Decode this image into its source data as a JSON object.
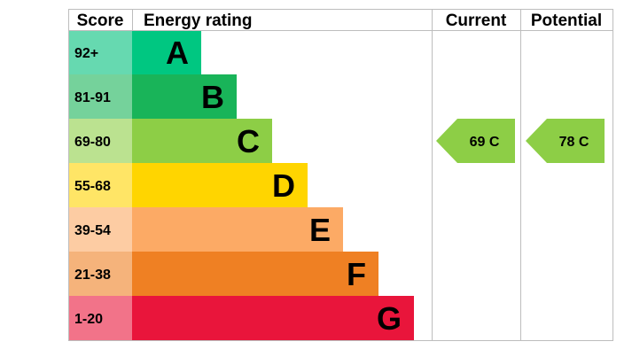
{
  "headers": {
    "score": "Score",
    "energy_rating": "Energy rating",
    "current": "Current",
    "potential": "Potential"
  },
  "chart_data": {
    "type": "bar",
    "title": "",
    "categories": [
      "A",
      "B",
      "C",
      "D",
      "E",
      "F",
      "G"
    ],
    "score_ranges": [
      "92+",
      "81-91",
      "69-80",
      "55-68",
      "39-54",
      "21-38",
      "1-20"
    ],
    "bands": [
      {
        "letter": "A",
        "range": "92+",
        "color": "#00c781",
        "score_color": "#66d9b0",
        "letter_color": "#000000"
      },
      {
        "letter": "B",
        "range": "81-91",
        "color": "#19b459",
        "score_color": "#75d29b",
        "letter_color": "#000000"
      },
      {
        "letter": "C",
        "range": "69-80",
        "color": "#8dce46",
        "score_color": "#bbe290",
        "letter_color": "#000000"
      },
      {
        "letter": "D",
        "range": "55-68",
        "color": "#ffd500",
        "score_color": "#ffe566",
        "letter_color": "#000000"
      },
      {
        "letter": "E",
        "range": "39-54",
        "color": "#fcaa65",
        "score_color": "#fdcca3",
        "letter_color": "#000000"
      },
      {
        "letter": "F",
        "range": "21-38",
        "color": "#ef8023",
        "score_color": "#f5b37b",
        "letter_color": "#000000"
      },
      {
        "letter": "G",
        "range": "1-20",
        "color": "#e9153b",
        "score_color": "#f27389",
        "letter_color": "#000000"
      }
    ],
    "current": {
      "value": 69,
      "band": "C",
      "label": "69  C",
      "color": "#8dce46"
    },
    "potential": {
      "value": 78,
      "band": "C",
      "label": "78  C",
      "color": "#8dce46"
    },
    "grid_color": "#bdbdbd"
  }
}
